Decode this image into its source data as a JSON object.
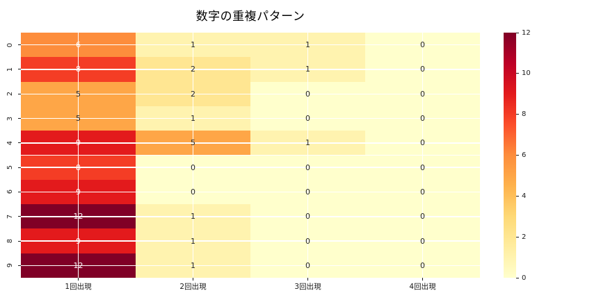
{
  "title": "数字の重複パターン",
  "colors": {
    "background": "#ffffff",
    "grid_line": "#ffffff",
    "annot_dark": "#262626",
    "annot_light": "#ffffff",
    "tick_text": "#1a1a1a"
  },
  "chart_data": {
    "type": "heatmap",
    "title": "数字の重複パターン",
    "x_categories": [
      "1回出現",
      "2回出現",
      "3回出現",
      "4回出現"
    ],
    "y_categories": [
      "0",
      "1",
      "2",
      "3",
      "4",
      "5",
      "6",
      "7",
      "8",
      "9"
    ],
    "values": [
      [
        6,
        1,
        1,
        0
      ],
      [
        8,
        2,
        1,
        0
      ],
      [
        5,
        2,
        0,
        0
      ],
      [
        5,
        1,
        0,
        0
      ],
      [
        9,
        5,
        1,
        0
      ],
      [
        8,
        0,
        0,
        0
      ],
      [
        9,
        0,
        0,
        0
      ],
      [
        12,
        1,
        0,
        0
      ],
      [
        9,
        1,
        0,
        0
      ],
      [
        12,
        1,
        0,
        0
      ]
    ],
    "vmin": 0,
    "vmax": 12,
    "colormap": "YlOrRd",
    "colormap_stops": [
      {
        "t": 0.0,
        "color": "#ffffcc"
      },
      {
        "t": 0.125,
        "color": "#ffeda0"
      },
      {
        "t": 0.25,
        "color": "#fed976"
      },
      {
        "t": 0.375,
        "color": "#feb24c"
      },
      {
        "t": 0.5,
        "color": "#fd8d3c"
      },
      {
        "t": 0.625,
        "color": "#fc4e2a"
      },
      {
        "t": 0.75,
        "color": "#e31a1c"
      },
      {
        "t": 0.875,
        "color": "#bd0026"
      },
      {
        "t": 1.0,
        "color": "#800026"
      }
    ],
    "colorbar_ticks": [
      0,
      2,
      4,
      6,
      8,
      10,
      12
    ],
    "grid": true,
    "annotated": true,
    "legend_position": "right-colorbar"
  }
}
